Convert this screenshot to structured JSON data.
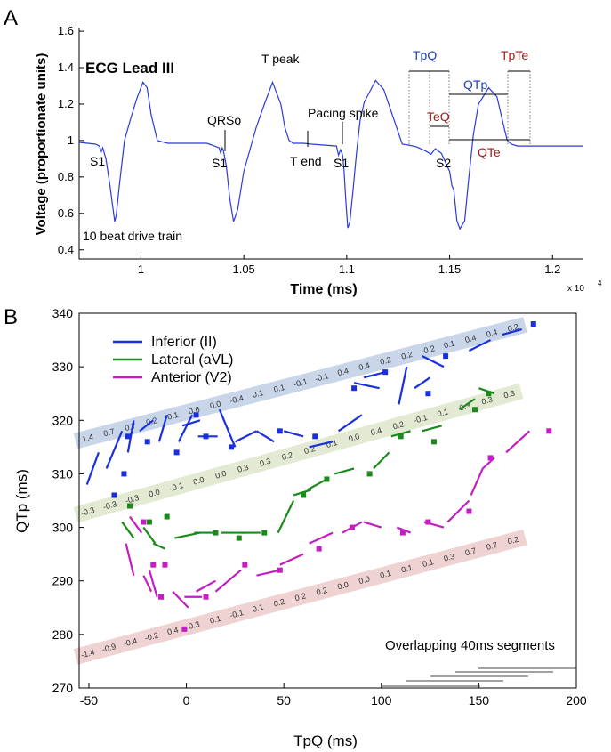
{
  "panel_a": {
    "panel_label": "A",
    "title": "ECG Lead III",
    "ylabel": "Voltage (proportionate units)",
    "xlabel": "Time (ms)",
    "x_exponent": "x 10",
    "x_exponent_power": "4",
    "yticks": [
      "1.6",
      "1.4",
      "1.2",
      "1",
      "0.8",
      "0.6",
      "0.4"
    ],
    "xticks": [
      "1",
      "1.05",
      "1.1",
      "1.15",
      "1.2"
    ],
    "annotations": {
      "s1a": "S1",
      "s1b": "S1",
      "s1c": "S1",
      "s2": "S2",
      "qrso": "QRSo",
      "tpeak": "T peak",
      "tend": "T end",
      "pacing": "Pacing spike",
      "drive": "10 beat drive train",
      "tpq": "TpQ",
      "qtp": "QTp",
      "teq": "TeQ",
      "qte": "QTe",
      "tpte": "TpTe"
    },
    "colors": {
      "trace": "#2b3bdb",
      "blue_label": "#1f3fbf",
      "red_label": "#a01c1c"
    }
  },
  "panel_b": {
    "panel_label": "B",
    "ylabel": "QTp (ms)",
    "xlabel": "TpQ (ms)",
    "legend": [
      {
        "label": "Inferior (II)",
        "color": "#1a2fe0"
      },
      {
        "label": "Lateral (aVL)",
        "color": "#1b8a1b"
      },
      {
        "label": "Anterior (V2)",
        "color": "#c21fc2"
      }
    ],
    "bands": {
      "inferior": [
        "1.4",
        "0.7",
        "0.7",
        "0.2",
        "0.1",
        "0.6",
        "0.0",
        "-0.4",
        "0.1",
        "0.1",
        "-0.1",
        "-0.1",
        "0.4",
        "0.4",
        "0.2",
        "0.2",
        "-0.2",
        "0.1",
        "0.4",
        "0.4",
        "0.2"
      ],
      "lateral": [
        "-0.3",
        "-0.3",
        "-0.3",
        "0.0",
        "-0.1",
        "0.0",
        "0.0",
        "0.3",
        "0.3",
        "0.2",
        "0.2",
        "0.1",
        "0.0",
        "0.4",
        "0.2",
        "-0.1",
        "0.1",
        "0.3",
        "0.3",
        "0.3"
      ],
      "anterior": [
        "-1.4",
        "-0.9",
        "-0.4",
        "-0.2",
        "0.4",
        "0.3",
        "0.1",
        "-0.1",
        "0.1",
        "0.2",
        "0.2",
        "0.2",
        "0.0",
        "0.0",
        "0.1",
        "0.1",
        "0.1",
        "0.3",
        "0.7",
        "0.7",
        "0.2"
      ]
    },
    "band_colors": {
      "inferior": "#c9d6ea",
      "lateral": "#e3ead3",
      "anterior": "#efd3d3"
    },
    "segments_label": "Overlapping 40ms segments"
  },
  "chart_data": [
    {
      "type": "line",
      "title": "ECG Lead III",
      "xlabel": "Time (ms)",
      "ylabel": "Voltage (proportionate units)",
      "xlim": [
        9700,
        12150
      ],
      "ylim": [
        0.35,
        1.62
      ],
      "x_scale_note": "x 10^4",
      "series": [
        {
          "x": [
            9700,
            9780,
            9798,
            9808,
            9815,
            9830,
            9850,
            9865,
            9873,
            9880,
            9895,
            9920,
            9950,
            9980,
            10010,
            10030,
            10050,
            10080,
            10130,
            10270,
            10320,
            10345,
            10380,
            10388,
            10395,
            10400,
            10415,
            10432,
            10450,
            10470,
            10500,
            10560,
            10600,
            10640,
            10680,
            10700,
            10720,
            10740,
            10790,
            10830,
            10950,
            10960,
            10970,
            10980,
            10987,
            10995,
            11005,
            11015,
            11030,
            11048,
            11065,
            11085,
            11140,
            11180,
            11270,
            11300,
            11340,
            11380,
            11410,
            11430,
            11460,
            11500,
            11510,
            11512,
            11520,
            11535,
            11550,
            11573,
            11590,
            11615,
            11640,
            11690,
            11730,
            11763,
            11780,
            11800,
            11830,
            11880,
            12000,
            12150
          ],
          "y": [
            0.99,
            0.98,
            0.97,
            0.94,
            0.96,
            0.9,
            0.75,
            0.62,
            0.555,
            0.59,
            0.75,
            1.0,
            1.12,
            1.23,
            1.32,
            1.29,
            1.14,
            1.0,
            0.985,
            0.985,
            0.985,
            0.975,
            0.96,
            0.93,
            0.96,
            0.95,
            0.86,
            0.68,
            0.555,
            0.62,
            0.83,
            1.07,
            1.2,
            1.32,
            1.2,
            1.07,
            1.0,
            0.985,
            0.985,
            0.98,
            0.97,
            0.92,
            0.95,
            0.92,
            0.84,
            0.68,
            0.52,
            0.55,
            0.72,
            0.94,
            1.11,
            1.21,
            1.33,
            1.28,
            0.98,
            0.975,
            0.965,
            0.945,
            0.925,
            0.955,
            0.93,
            0.83,
            0.76,
            0.75,
            0.73,
            0.56,
            0.515,
            0.56,
            0.76,
            1.03,
            1.2,
            1.29,
            1.24,
            1.08,
            1.0,
            0.98,
            0.97,
            0.97,
            0.97,
            0.97
          ]
        }
      ],
      "yticks": [
        0.4,
        0.6,
        0.8,
        1,
        1.2,
        1.4,
        1.6
      ],
      "xticks": [
        10000,
        10500,
        11000,
        11500,
        12000
      ]
    },
    {
      "type": "scatter",
      "xlabel": "TpQ (ms)",
      "ylabel": "QTp (ms)",
      "xlim": [
        -55,
        200
      ],
      "ylim": [
        270,
        340
      ],
      "xticks": [
        -50,
        0,
        50,
        100,
        150,
        200
      ],
      "yticks": [
        270,
        280,
        290,
        300,
        310,
        320,
        330,
        340
      ],
      "series": [
        {
          "name": "Inferior (II)",
          "markers": [
            [
              -37,
              306
            ],
            [
              -32,
              310
            ],
            [
              -30,
              317
            ],
            [
              -20,
              316
            ],
            [
              -5,
              314
            ],
            [
              5,
              321
            ],
            [
              10,
              317
            ],
            [
              23,
              315
            ],
            [
              48,
              318
            ],
            [
              66,
              317
            ],
            [
              86,
              326
            ],
            [
              102,
              329
            ],
            [
              124,
              325
            ],
            [
              133,
              332
            ],
            [
              178,
              338
            ]
          ],
          "segments": [
            [
              [
                -51,
                308
              ],
              [
                -45,
                314
              ]
            ],
            [
              [
                -41,
                311
              ],
              [
                -33,
                318
              ]
            ],
            [
              [
                -30,
                314
              ],
              [
                -27,
                320
              ]
            ],
            [
              [
                -24,
                318
              ],
              [
                -17,
                320
              ]
            ],
            [
              [
                -14,
                316
              ],
              [
                -10,
                321
              ]
            ],
            [
              [
                -4,
                316
              ],
              [
                3,
                321
              ]
            ],
            [
              [
                -2,
                319
              ],
              [
                7,
                320
              ]
            ],
            [
              [
                6,
                317
              ],
              [
                16,
                317
              ]
            ],
            [
              [
                17,
                322
              ],
              [
                25,
                315
              ]
            ],
            [
              [
                25,
                316
              ],
              [
                36,
                318
              ]
            ],
            [
              [
                36,
                318
              ],
              [
                45,
                316
              ]
            ],
            [
              [
                50,
                318
              ],
              [
                60,
                317
              ]
            ],
            [
              [
                63,
                315
              ],
              [
                75,
                316
              ]
            ],
            [
              [
                78,
                318
              ],
              [
                90,
                321
              ]
            ],
            [
              [
                86,
                327
              ],
              [
                99,
                326
              ]
            ],
            [
              [
                91,
                328
              ],
              [
                102,
                329
              ]
            ],
            [
              [
                109,
                323
              ],
              [
                113,
                330
              ]
            ],
            [
              [
                117,
                326
              ],
              [
                125,
                328
              ]
            ],
            [
              [
                121,
                332
              ],
              [
                132,
                330
              ]
            ],
            [
              [
                145,
                333
              ],
              [
                156,
                335
              ]
            ],
            [
              [
                162,
                336
              ],
              [
                172,
                337
              ]
            ]
          ]
        },
        {
          "name": "Lateral (aVL)",
          "markers": [
            [
              -29,
              304
            ],
            [
              -19,
              301
            ],
            [
              -10,
              302
            ],
            [
              15,
              299
            ],
            [
              27,
              298
            ],
            [
              40,
              299
            ],
            [
              60,
              306
            ],
            [
              72,
              309
            ],
            [
              94,
              310
            ],
            [
              110,
              317
            ],
            [
              127,
              316
            ],
            [
              148,
              322
            ],
            [
              155,
              325
            ]
          ],
          "segments": [
            [
              [
                -33,
                301
              ],
              [
                -27,
                298
              ]
            ],
            [
              [
                -22,
                300
              ],
              [
                -16,
                297
              ]
            ],
            [
              [
                -17,
                297
              ],
              [
                -11,
                296
              ]
            ],
            [
              [
                -6,
                298
              ],
              [
                7,
                299
              ]
            ],
            [
              [
                4,
                299
              ],
              [
                14,
                299
              ]
            ],
            [
              [
                18,
                299
              ],
              [
                30,
                299
              ]
            ],
            [
              [
                28,
                299
              ],
              [
                38,
                299
              ]
            ],
            [
              [
                47,
                299
              ],
              [
                55,
                305
              ]
            ],
            [
              [
                55,
                306
              ],
              [
                64,
                307
              ]
            ],
            [
              [
                62,
                307
              ],
              [
                72,
                309
              ]
            ],
            [
              [
                76,
                310
              ],
              [
                86,
                311
              ]
            ],
            [
              [
                96,
                311
              ],
              [
                104,
                314
              ]
            ],
            [
              [
                105,
                317
              ],
              [
                115,
                318
              ]
            ],
            [
              [
                121,
                318
              ],
              [
                131,
                319
              ]
            ],
            [
              [
                140,
                322
              ],
              [
                148,
                324
              ]
            ],
            [
              [
                150,
                326
              ],
              [
                158,
                325
              ]
            ]
          ]
        },
        {
          "name": "Anterior (V2)",
          "markers": [
            [
              -22,
              301
            ],
            [
              -17,
              293
            ],
            [
              -13,
              287
            ],
            [
              -11,
              293
            ],
            [
              -1,
              281
            ],
            [
              10,
              287
            ],
            [
              30,
              293
            ],
            [
              48,
              292
            ],
            [
              68,
              296
            ],
            [
              85,
              300
            ],
            [
              111,
              299
            ],
            [
              124,
              301
            ],
            [
              145,
              303
            ],
            [
              156,
              313
            ],
            [
              186,
              318
            ]
          ],
          "segments": [
            [
              [
                -31,
                297
              ],
              [
                -27,
                291
              ]
            ],
            [
              [
                -29,
                302
              ],
              [
                -23,
                299
              ]
            ],
            [
              [
                -22,
                291
              ],
              [
                -18,
                288
              ]
            ],
            [
              [
                -19,
                292
              ],
              [
                -15,
                287
              ]
            ],
            [
              [
                -7,
                288
              ],
              [
                1,
                285
              ]
            ],
            [
              [
                -1,
                287
              ],
              [
                8,
                287
              ]
            ],
            [
              [
                5,
                288
              ],
              [
                15,
                290
              ]
            ],
            [
              [
                15,
                288
              ],
              [
                28,
                292
              ]
            ],
            [
              [
                36,
                291
              ],
              [
                48,
                292
              ]
            ],
            [
              [
                48,
                293
              ],
              [
                60,
                295
              ]
            ],
            [
              [
                63,
                297
              ],
              [
                75,
                299
              ]
            ],
            [
              [
                80,
                299
              ],
              [
                90,
                301
              ]
            ],
            [
              [
                91,
                301
              ],
              [
                100,
                300
              ]
            ],
            [
              [
                108,
                300
              ],
              [
                115,
                299
              ]
            ],
            [
              [
                122,
                301
              ],
              [
                132,
                300
              ]
            ],
            [
              [
                134,
                301
              ],
              [
                145,
                305
              ]
            ],
            [
              [
                146,
                306
              ],
              [
                152,
                311
              ]
            ],
            [
              [
                152,
                311
              ],
              [
                158,
                313
              ]
            ],
            [
              [
                164,
                314
              ],
              [
                176,
                318
              ]
            ]
          ]
        }
      ]
    }
  ]
}
